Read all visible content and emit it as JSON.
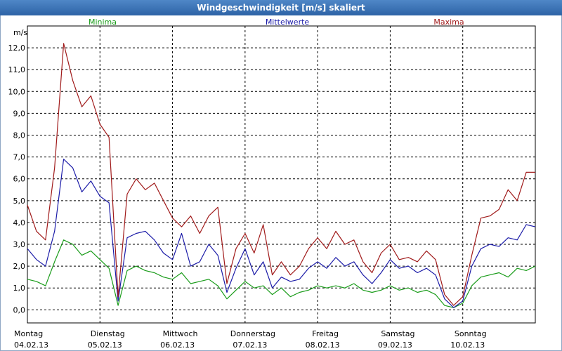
{
  "window": {
    "title": "Windgeschwindigkeit [m/s] skaliert"
  },
  "chart_data": {
    "type": "line",
    "title": "Windgeschwindigkeit [m/s] skaliert",
    "ylabel": "m/s",
    "ylim": [
      -0.6,
      13.0
    ],
    "xlim": [
      0,
      7
    ],
    "yticks": [
      {
        "value": 0,
        "label": "0,0"
      },
      {
        "value": 1,
        "label": "1,0"
      },
      {
        "value": 2,
        "label": "2,0"
      },
      {
        "value": 3,
        "label": "3,0"
      },
      {
        "value": 4,
        "label": "4,0"
      },
      {
        "value": 5,
        "label": "5,0"
      },
      {
        "value": 6,
        "label": "6,0"
      },
      {
        "value": 7,
        "label": "7,0"
      },
      {
        "value": 8,
        "label": "8,0"
      },
      {
        "value": 9,
        "label": "9,0"
      },
      {
        "value": 10,
        "label": "10,0"
      },
      {
        "value": 11,
        "label": "11,0"
      },
      {
        "value": 12,
        "label": "12,0"
      }
    ],
    "days": [
      {
        "weekday": "Montag",
        "date": "04.02.13"
      },
      {
        "weekday": "Dienstag",
        "date": "05.02.13"
      },
      {
        "weekday": "Mittwoch",
        "date": "06.02.13"
      },
      {
        "weekday": "Donnerstag",
        "date": "07.02.13"
      },
      {
        "weekday": "Freitag",
        "date": "08.02.13"
      },
      {
        "weekday": "Samstag",
        "date": "09.02.13"
      },
      {
        "weekday": "Sonntag",
        "date": "10.02.13"
      }
    ],
    "grid": true,
    "legend_position": "top",
    "x": [
      0,
      0.125,
      0.25,
      0.375,
      0.5,
      0.625,
      0.75,
      0.875,
      1.0,
      1.125,
      1.25,
      1.375,
      1.5,
      1.625,
      1.75,
      1.875,
      2.0,
      2.125,
      2.25,
      2.375,
      2.5,
      2.625,
      2.75,
      2.875,
      3.0,
      3.125,
      3.25,
      3.375,
      3.5,
      3.625,
      3.75,
      3.875,
      4.0,
      4.125,
      4.25,
      4.375,
      4.5,
      4.625,
      4.75,
      4.875,
      5.0,
      5.125,
      5.25,
      5.375,
      5.5,
      5.625,
      5.75,
      5.875,
      6.0,
      6.125,
      6.25,
      6.375,
      6.5,
      6.625,
      6.75,
      6.875,
      7.0
    ],
    "series": [
      {
        "name": "Minima",
        "color": "#1a9c1a",
        "values": [
          1.4,
          1.3,
          1.1,
          2.2,
          3.2,
          3.0,
          2.5,
          2.7,
          2.3,
          1.9,
          0.2,
          1.8,
          2.0,
          1.8,
          1.7,
          1.5,
          1.4,
          1.7,
          1.2,
          1.3,
          1.4,
          1.1,
          0.5,
          0.9,
          1.3,
          1.0,
          1.1,
          0.7,
          1.0,
          0.6,
          0.8,
          0.9,
          1.1,
          1.0,
          1.1,
          1.0,
          1.2,
          0.9,
          0.8,
          0.9,
          1.1,
          0.9,
          1.0,
          0.8,
          0.9,
          0.7,
          0.2,
          0.1,
          0.3,
          1.1,
          1.5,
          1.6,
          1.7,
          1.5,
          1.9,
          1.8,
          2.0
        ]
      },
      {
        "name": "Mittelwerte",
        "color": "#1c1ca8",
        "values": [
          2.8,
          2.3,
          2.0,
          3.6,
          6.9,
          6.5,
          5.4,
          5.9,
          5.2,
          4.9,
          0.4,
          3.3,
          3.5,
          3.6,
          3.2,
          2.6,
          2.3,
          3.5,
          2.0,
          2.2,
          3.0,
          2.5,
          0.8,
          1.9,
          2.8,
          1.6,
          2.2,
          1.0,
          1.5,
          1.3,
          1.4,
          1.9,
          2.2,
          1.9,
          2.4,
          2.0,
          2.2,
          1.6,
          1.2,
          1.7,
          2.3,
          1.9,
          2.0,
          1.7,
          1.9,
          1.6,
          0.5,
          0.1,
          0.4,
          2.0,
          2.8,
          3.0,
          2.9,
          3.3,
          3.2,
          3.9,
          3.8
        ]
      },
      {
        "name": "Maxima",
        "color": "#a01a1a",
        "values": [
          4.8,
          3.6,
          3.2,
          6.5,
          12.2,
          10.5,
          9.3,
          9.8,
          8.5,
          7.9,
          0.6,
          5.3,
          6.0,
          5.5,
          5.8,
          5.0,
          4.2,
          3.8,
          4.3,
          3.5,
          4.3,
          4.7,
          1.2,
          2.8,
          3.5,
          2.6,
          3.9,
          1.6,
          2.2,
          1.6,
          2.0,
          2.8,
          3.3,
          2.8,
          3.6,
          3.0,
          3.2,
          2.2,
          1.7,
          2.6,
          3.0,
          2.3,
          2.4,
          2.2,
          2.7,
          2.3,
          0.7,
          0.2,
          0.6,
          2.5,
          4.2,
          4.3,
          4.6,
          5.5,
          5.0,
          6.3,
          6.3
        ]
      }
    ]
  }
}
